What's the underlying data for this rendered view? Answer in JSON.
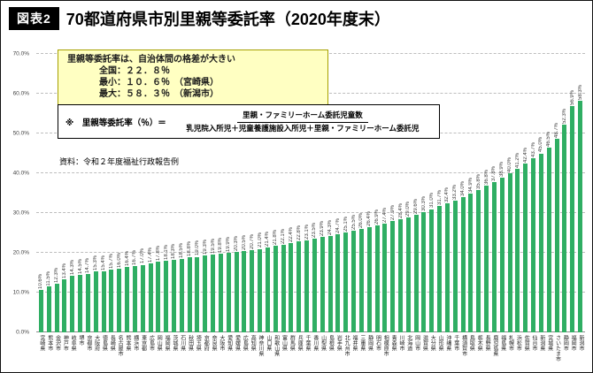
{
  "header": {
    "tag": "図表2",
    "title": "70都道府県市別里親等委託率（2020年度末）"
  },
  "callout": {
    "heading": "里親等委託率は、自治体間の格差が大きい",
    "national": "全国：２２．８％",
    "min": "最小：１０．６％　（宮崎県）",
    "max": "最大：５８．３％　（新潟市）"
  },
  "formula_box": {
    "prefix": "※　里親等委託率（％）＝",
    "numerator": "里親・ファミリーホーム委託児童数",
    "denominator": "乳児院入所児＋児童養護施設入所児＋里親・ファミリーホーム委託児"
  },
  "source_note": "資料：令和２年度福祉行政報告例",
  "colors": {
    "bar": "#2FAE63",
    "callout_bg": "#FFFFC2",
    "tag_bg": "#000000"
  },
  "chart_data": {
    "type": "bar",
    "title": "70都道府県市別里親等委託率（2020年度末）",
    "ylabel": "里親等委託率",
    "unit": "%",
    "ylim": [
      0,
      70
    ],
    "grid": true,
    "yticks": [
      "0.0%",
      "10.0%",
      "20.0%",
      "30.0%",
      "40.0%",
      "50.0%",
      "60.0%",
      "70.0%"
    ],
    "categories": [
      "宮崎県",
      "熊本市",
      "金沢市",
      "神戸市",
      "岐阜県",
      "堺市",
      "京都市",
      "大阪府",
      "徳島県",
      "長崎県",
      "名古屋市",
      "熊本県",
      "横浜市",
      "東京都",
      "広島市",
      "岡山県",
      "福岡県",
      "茨城県",
      "石川県",
      "秋田県",
      "埼玉県",
      "京都府",
      "奈良県",
      "大阪市",
      "愛知県",
      "愛媛県",
      "広島県",
      "高知県",
      "神奈川県",
      "山口県",
      "和歌山県",
      "富山県",
      "群馬県",
      "兵庫県",
      "千葉県",
      "香川県",
      "山梨県",
      "島根県",
      "岩手県",
      "北九州市",
      "福井県",
      "三重県",
      "静岡県",
      "明石市",
      "相模原市",
      "青森県",
      "川崎市",
      "北海道",
      "岡山市",
      "滋賀県",
      "大分県",
      "山形県",
      "沖縄県",
      "千葉市",
      "横須賀市",
      "鳥取県",
      "栃木県",
      "長野県",
      "鹿児島県",
      "福島県",
      "札幌市",
      "浜松市",
      "佐賀県",
      "仙台市",
      "新潟県",
      "宮城県",
      "さいたま市",
      "静岡市",
      "福岡市",
      "新潟市"
    ],
    "values": [
      10.6,
      11.5,
      12.3,
      13.4,
      14.3,
      14.5,
      14.7,
      15.3,
      15.4,
      15.7,
      16.0,
      16.4,
      16.7,
      17.0,
      17.4,
      17.8,
      18.1,
      18.3,
      18.5,
      18.8,
      19.0,
      19.3,
      19.5,
      19.8,
      19.9,
      20.3,
      20.5,
      20.7,
      21.0,
      21.4,
      21.8,
      22.1,
      22.4,
      22.8,
      23.1,
      23.5,
      23.9,
      24.3,
      24.7,
      25.1,
      25.5,
      26.0,
      26.4,
      26.9,
      27.4,
      27.9,
      28.4,
      29.0,
      29.6,
      30.3,
      31.0,
      31.7,
      32.4,
      33.2,
      34.0,
      34.9,
      35.8,
      36.8,
      37.8,
      38.9,
      40.0,
      41.2,
      42.4,
      43.7,
      45.0,
      46.5,
      48.7,
      52.3,
      56.9,
      58.3
    ],
    "annotations": {
      "national_average": 22.8,
      "min": {
        "label": "宮崎県",
        "value": 10.6
      },
      "max": {
        "label": "新潟市",
        "value": 58.3
      }
    },
    "legend": "none",
    "value_labels": "rotated-vertical-above-bars"
  }
}
